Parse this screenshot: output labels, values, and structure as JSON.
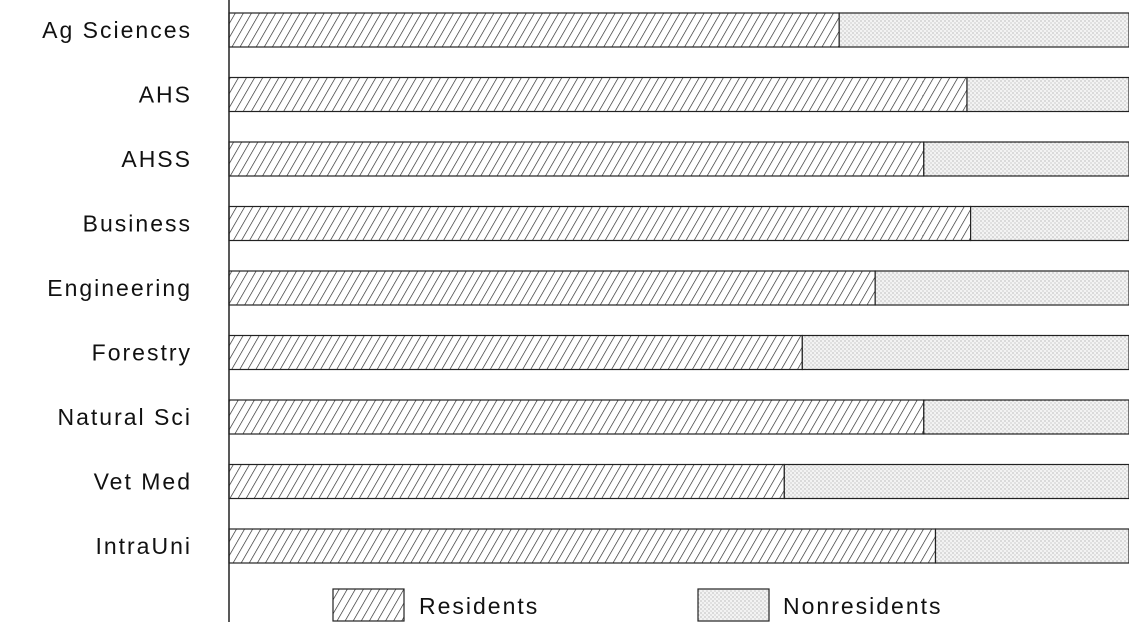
{
  "chart_data": {
    "type": "bar",
    "orientation": "horizontal",
    "stacked": true,
    "percent_stacked": true,
    "categories": [
      "Ag Sciences",
      "AHS",
      "AHSS",
      "Business",
      "Engineering",
      "Forestry",
      "Natural Sci",
      "Vet Med",
      "IntraUni"
    ],
    "series": [
      {
        "name": "Residents",
        "values": [
          67.8,
          82.0,
          77.2,
          82.4,
          71.8,
          63.7,
          77.2,
          61.7,
          78.5
        ],
        "pattern": "diagonal-hatch",
        "color": "#333333"
      },
      {
        "name": "Nonresidents",
        "values": [
          32.2,
          18.0,
          22.8,
          17.6,
          28.2,
          36.3,
          22.8,
          38.3,
          21.5
        ],
        "pattern": "stipple",
        "color": "#d9d9d9"
      }
    ],
    "xlim": [
      0,
      100
    ],
    "grid": false,
    "legend": "bottom"
  }
}
